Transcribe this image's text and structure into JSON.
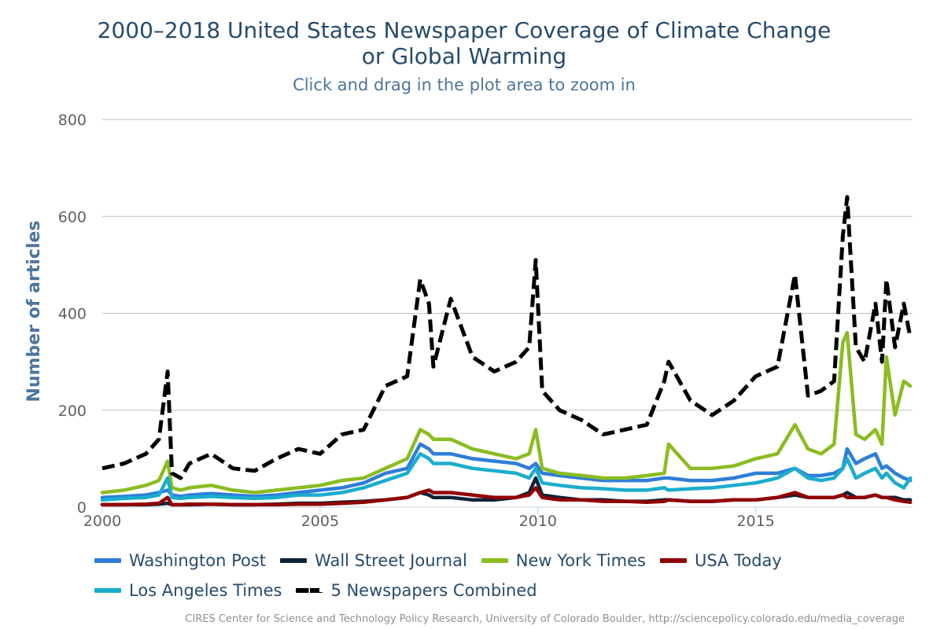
{
  "chart_data": {
    "type": "line",
    "title": "2000–2018 United States Newspaper Coverage of Climate Change\nor Global Warming",
    "subtitle": "Click and drag in the plot area to zoom in",
    "xlabel": "",
    "ylabel": "Number of articles",
    "xlim": [
      2000,
      2018.6
    ],
    "ylim": [
      0,
      800
    ],
    "x_ticks": [
      "2000",
      "2005",
      "2010",
      "2015"
    ],
    "y_ticks": [
      "0",
      "200",
      "400",
      "600",
      "800"
    ],
    "x_values": [
      2000.0,
      2000.5,
      2001.0,
      2001.3,
      2001.5,
      2001.6,
      2001.8,
      2002.0,
      2002.5,
      2003.0,
      2003.5,
      2004.0,
      2004.5,
      2005.0,
      2005.5,
      2006.0,
      2006.5,
      2007.0,
      2007.3,
      2007.5,
      2007.6,
      2008.0,
      2008.5,
      2009.0,
      2009.5,
      2009.8,
      2009.95,
      2010.1,
      2010.5,
      2011.0,
      2011.5,
      2012.0,
      2012.5,
      2012.9,
      2013.0,
      2013.5,
      2014.0,
      2014.5,
      2015.0,
      2015.5,
      2015.9,
      2016.2,
      2016.5,
      2016.8,
      2017.0,
      2017.1,
      2017.3,
      2017.5,
      2017.75,
      2017.9,
      2018.0,
      2018.2,
      2018.4,
      2018.55
    ],
    "series": [
      {
        "name": "Washington Post",
        "color": "#2f7ed8",
        "dashed": false,
        "values": [
          20,
          22,
          25,
          30,
          35,
          25,
          22,
          25,
          28,
          25,
          22,
          25,
          30,
          35,
          40,
          50,
          70,
          80,
          130,
          120,
          110,
          110,
          100,
          95,
          90,
          80,
          90,
          70,
          65,
          60,
          55,
          55,
          55,
          60,
          60,
          55,
          55,
          60,
          70,
          70,
          80,
          65,
          65,
          70,
          80,
          120,
          90,
          100,
          110,
          80,
          85,
          70,
          60,
          55
        ]
      },
      {
        "name": "Wall Street Journal",
        "color": "#0d233a",
        "dashed": false,
        "values": [
          5,
          5,
          5,
          6,
          8,
          5,
          5,
          5,
          6,
          5,
          5,
          6,
          8,
          8,
          10,
          12,
          15,
          20,
          30,
          25,
          20,
          20,
          15,
          15,
          20,
          30,
          60,
          25,
          20,
          15,
          15,
          12,
          12,
          15,
          15,
          12,
          12,
          15,
          15,
          20,
          25,
          20,
          20,
          20,
          25,
          30,
          20,
          20,
          25,
          20,
          20,
          20,
          15,
          15
        ]
      },
      {
        "name": "New York Times",
        "color": "#8bbc21",
        "dashed": false,
        "values": [
          30,
          35,
          45,
          55,
          95,
          40,
          35,
          40,
          45,
          35,
          30,
          35,
          40,
          45,
          55,
          60,
          80,
          100,
          160,
          150,
          140,
          140,
          120,
          110,
          100,
          110,
          160,
          80,
          70,
          65,
          60,
          60,
          65,
          70,
          130,
          80,
          80,
          85,
          100,
          110,
          170,
          120,
          110,
          130,
          340,
          360,
          150,
          140,
          160,
          130,
          310,
          190,
          260,
          250
        ]
      },
      {
        "name": "USA Today",
        "color": "#910000",
        "dashed": false,
        "values": [
          5,
          5,
          6,
          8,
          20,
          5,
          5,
          6,
          6,
          5,
          5,
          5,
          6,
          6,
          8,
          10,
          15,
          20,
          30,
          35,
          30,
          30,
          25,
          20,
          20,
          25,
          40,
          20,
          15,
          15,
          12,
          12,
          10,
          12,
          15,
          12,
          12,
          15,
          15,
          20,
          30,
          20,
          20,
          20,
          25,
          20,
          20,
          20,
          25,
          20,
          20,
          15,
          12,
          10
        ]
      },
      {
        "name": "Los Angeles Times",
        "color": "#1aadce",
        "dashed": false,
        "values": [
          15,
          18,
          20,
          25,
          60,
          20,
          18,
          20,
          22,
          20,
          18,
          20,
          25,
          25,
          30,
          40,
          55,
          70,
          110,
          100,
          90,
          90,
          80,
          75,
          70,
          60,
          80,
          50,
          45,
          40,
          38,
          35,
          35,
          40,
          35,
          38,
          40,
          45,
          50,
          60,
          80,
          60,
          55,
          60,
          80,
          100,
          60,
          70,
          80,
          60,
          70,
          50,
          40,
          60
        ]
      },
      {
        "name": "5 Newspapers Combined",
        "color": "#000000",
        "dashed": true,
        "values": [
          80,
          90,
          110,
          140,
          280,
          70,
          60,
          90,
          110,
          80,
          75,
          100,
          120,
          110,
          150,
          160,
          250,
          270,
          470,
          420,
          290,
          430,
          310,
          280,
          300,
          330,
          510,
          240,
          200,
          180,
          150,
          160,
          170,
          260,
          300,
          220,
          190,
          220,
          270,
          290,
          480,
          230,
          240,
          260,
          560,
          640,
          330,
          300,
          420,
          300,
          470,
          330,
          420,
          350
        ]
      }
    ]
  },
  "credits": "CIRES Center for Science and Technology Policy Research, University of Colorado Boulder, http://sciencepolicy.colorado.edu/media_coverage"
}
